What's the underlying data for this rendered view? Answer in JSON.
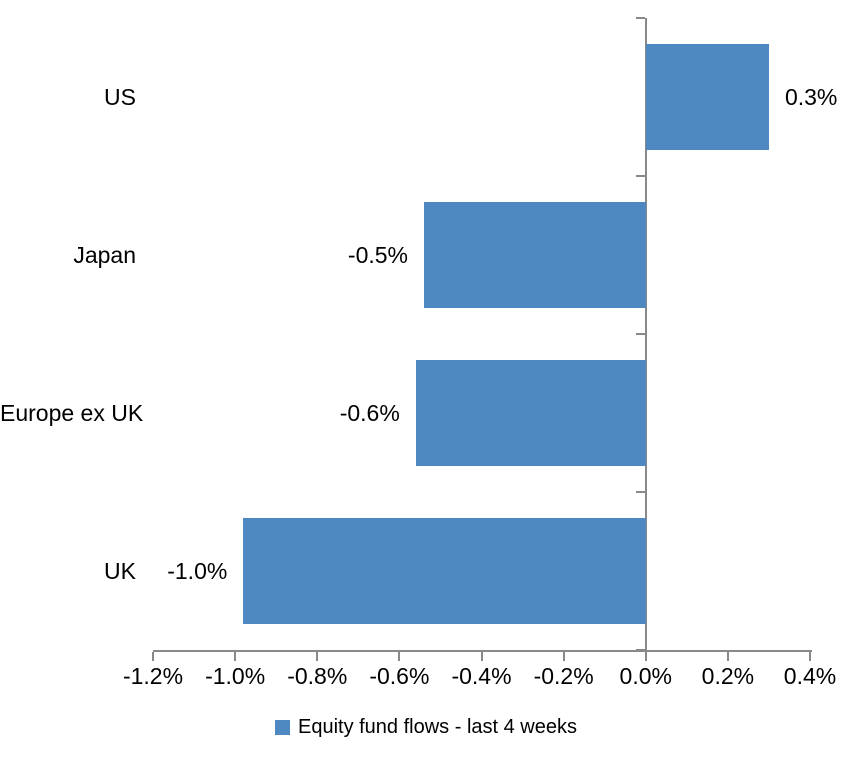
{
  "chart_data": {
    "type": "bar",
    "orientation": "horizontal",
    "title": "",
    "categories": [
      "US",
      "Japan",
      "Europe ex UK",
      "UK"
    ],
    "values": [
      0.3,
      -0.54,
      -0.56,
      -0.98
    ],
    "data_labels": [
      "0.3%",
      "-0.5%",
      "-0.6%",
      "-1.0%"
    ],
    "x_ticks": [
      {
        "value": -1.2,
        "label": "-1.2%"
      },
      {
        "value": -1.0,
        "label": "-1.0%"
      },
      {
        "value": -0.8,
        "label": "-0.8%"
      },
      {
        "value": -0.6,
        "label": "-0.6%"
      },
      {
        "value": -0.4,
        "label": "-0.4%"
      },
      {
        "value": -0.2,
        "label": "-0.2%"
      },
      {
        "value": 0.0,
        "label": "0.0%"
      },
      {
        "value": 0.2,
        "label": "0.2%"
      },
      {
        "value": 0.4,
        "label": "0.4%"
      }
    ],
    "xlim": [
      -1.2,
      0.4
    ],
    "grid": "off",
    "legend": "Equity fund flows - last 4 weeks",
    "legend_position": "bottom-center",
    "bar_color": "#4e88c0",
    "axis_color": "#898989",
    "text_color": "#000000",
    "background_color": "#ffffff"
  }
}
